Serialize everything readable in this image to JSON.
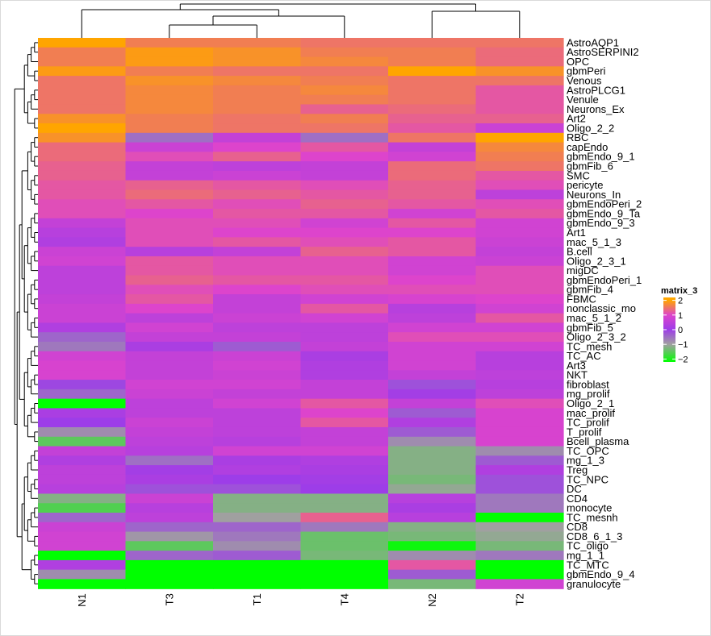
{
  "chart_data": {
    "type": "heatmap",
    "title": "",
    "columns": [
      "N1",
      "T3",
      "T1",
      "T4",
      "N2",
      "T2"
    ],
    "rows": [
      "AstroAQP1",
      "AstroSERPINI2",
      "OPC",
      "gbmPeri",
      "Venous",
      "AstroPLCG1",
      "Venule",
      "Neurons_Ex",
      "Art2",
      "Oligo_2_2",
      "RBC",
      "capEndo",
      "gbmEndo_9_1",
      "gbmFib_6",
      "SMC",
      "pericyte",
      "Neurons_In",
      "gbmEndoPeri_2",
      "gbmEndo_9_Ta",
      "gbmEndo_9_3",
      "Art1",
      "mac_5_1_3",
      "B.cell",
      "Oligo_2_3_1",
      "migDC",
      "gbmEndoPeri_1",
      "gbmFib_4",
      "FBMC",
      "nonclassic_mo",
      "mac_5_1_2",
      "gbmFib_5",
      "Oligo_2_3_2",
      "TC_mesh",
      "TC_AC",
      "Art3",
      "NKT",
      "fibroblast",
      "mg_prolif",
      "Oligo_2_1",
      "mac_prolif",
      "TC_prolif",
      "T_prolif",
      "Bcell_plasma",
      "TC_OPC",
      "mg_1_3",
      "Treg",
      "TC_NPC",
      "DC",
      "CD4",
      "monocyte",
      "TC_mesnh",
      "CD8",
      "CD8_6_1_3",
      "TC_oligo",
      "mg_1_1",
      "TC_MTC",
      "gbmEndo_9_4",
      "granulocyte"
    ],
    "values": [
      [
        2.0,
        1.6,
        1.6,
        1.5,
        1.5,
        1.5
      ],
      [
        1.6,
        1.9,
        1.8,
        1.6,
        1.6,
        1.4
      ],
      [
        1.6,
        1.9,
        1.8,
        1.7,
        1.6,
        1.4
      ],
      [
        1.9,
        1.6,
        1.5,
        1.5,
        2.0,
        1.8
      ],
      [
        1.5,
        1.8,
        1.7,
        1.6,
        1.5,
        1.5
      ],
      [
        1.5,
        1.7,
        1.6,
        1.7,
        1.5,
        1.2
      ],
      [
        1.5,
        1.7,
        1.6,
        1.6,
        1.5,
        1.2
      ],
      [
        1.5,
        1.7,
        1.6,
        1.3,
        1.4,
        1.2
      ],
      [
        1.8,
        1.6,
        1.5,
        1.6,
        1.3,
        1.3
      ],
      [
        2.0,
        1.6,
        1.5,
        1.5,
        1.2,
        0.7
      ],
      [
        1.8,
        -0.5,
        0.6,
        -0.5,
        1.5,
        2.0
      ],
      [
        1.4,
        0.7,
        1.0,
        1.2,
        0.6,
        1.7
      ],
      [
        1.4,
        1.1,
        1.3,
        1.0,
        0.8,
        1.6
      ],
      [
        1.3,
        0.6,
        0.5,
        0.6,
        1.4,
        1.5
      ],
      [
        1.3,
        0.6,
        0.7,
        0.6,
        1.4,
        1.2
      ],
      [
        1.2,
        1.3,
        1.2,
        1.1,
        1.3,
        1.1
      ],
      [
        1.2,
        1.4,
        1.3,
        1.2,
        1.3,
        0.5
      ],
      [
        1.1,
        1.2,
        1.1,
        1.3,
        1.2,
        1.1
      ],
      [
        1.1,
        1.0,
        1.2,
        1.2,
        0.8,
        1.2
      ],
      [
        0.6,
        1.1,
        1.1,
        0.8,
        1.2,
        0.8
      ],
      [
        0.4,
        1.1,
        1.0,
        1.0,
        1.0,
        0.8
      ],
      [
        0.3,
        1.1,
        1.2,
        1.1,
        1.2,
        0.7
      ],
      [
        0.7,
        0.4,
        0.6,
        1.3,
        1.2,
        0.6
      ],
      [
        0.8,
        1.2,
        1.1,
        1.1,
        0.8,
        0.7
      ],
      [
        0.5,
        1.2,
        1.1,
        1.1,
        0.8,
        1.1
      ],
      [
        0.5,
        1.3,
        1.2,
        1.2,
        1.0,
        1.1
      ],
      [
        0.5,
        1.1,
        1.0,
        1.1,
        1.1,
        1.1
      ],
      [
        0.6,
        1.2,
        0.6,
        0.8,
        0.9,
        1.0
      ],
      [
        0.7,
        1.0,
        0.6,
        1.2,
        0.4,
        0.8
      ],
      [
        0.7,
        0.5,
        0.7,
        0.8,
        0.5,
        1.2
      ],
      [
        0.3,
        0.8,
        0.5,
        0.5,
        0.8,
        0.8
      ],
      [
        -0.4,
        0.6,
        0.6,
        0.5,
        1.1,
        1.1
      ],
      [
        -0.6,
        0.2,
        -0.3,
        0.6,
        0.8,
        0.8
      ],
      [
        0.8,
        0.6,
        0.7,
        0.2,
        0.8,
        0.4
      ],
      [
        0.9,
        0.6,
        0.8,
        0.3,
        0.8,
        0.4
      ],
      [
        0.9,
        0.6,
        0.7,
        0.3,
        0.6,
        0.5
      ],
      [
        -0.1,
        0.8,
        0.8,
        0.6,
        -0.2,
        0.4
      ],
      [
        -0.4,
        0.7,
        0.6,
        0.6,
        0.1,
        0.5
      ],
      [
        -2.2,
        0.5,
        0.8,
        1.2,
        0.6,
        1.1
      ],
      [
        0.2,
        0.5,
        0.5,
        1.0,
        -0.3,
        0.9
      ],
      [
        0.0,
        0.7,
        0.5,
        1.2,
        0.3,
        0.9
      ],
      [
        -0.8,
        0.6,
        0.5,
        0.6,
        -0.3,
        0.9
      ],
      [
        -1.5,
        0.5,
        0.4,
        0.6,
        -0.8,
        0.9
      ],
      [
        0.6,
        0.4,
        0.8,
        0.8,
        -1.2,
        -0.8
      ],
      [
        0.3,
        -0.5,
        0.2,
        0.3,
        -1.2,
        -0.3
      ],
      [
        0.5,
        0.1,
        0.3,
        0.2,
        -1.2,
        0.3
      ],
      [
        0.5,
        0.2,
        0.0,
        0.1,
        -1.3,
        -0.2
      ],
      [
        0.4,
        -0.2,
        -0.2,
        0.0,
        -1.1,
        -0.2
      ],
      [
        -1.2,
        0.7,
        -1.2,
        -1.2,
        0.4,
        -0.6
      ],
      [
        -1.6,
        0.4,
        -1.2,
        -1.2,
        0.2,
        -0.6
      ],
      [
        -0.4,
        0.5,
        -1.0,
        1.3,
        0.4,
        -2.2
      ],
      [
        0.7,
        -0.4,
        -0.4,
        -0.6,
        -1.2,
        -1.0
      ],
      [
        0.8,
        -0.9,
        -0.6,
        -1.4,
        -1.3,
        -1.1
      ],
      [
        0.8,
        -1.5,
        -0.8,
        -1.4,
        -2.1,
        -1.3
      ],
      [
        -2.2,
        -0.4,
        -0.3,
        -1.3,
        -0.8,
        -0.6
      ],
      [
        0.3,
        -2.2,
        -2.2,
        -2.2,
        1.2,
        -2.2
      ],
      [
        -0.8,
        -2.2,
        -2.2,
        -2.2,
        -0.3,
        -2.2
      ],
      [
        -2.2,
        -2.2,
        -2.2,
        -2.2,
        -1.3,
        0.8
      ]
    ],
    "color_scale": {
      "title": "matrix_3",
      "ticks": [
        2,
        1,
        0,
        -1,
        -2
      ],
      "stops": [
        {
          "value": 2,
          "color": "#ffa500"
        },
        {
          "value": 1,
          "color": "#dd44cc"
        },
        {
          "value": 0,
          "color": "#9d3de8"
        },
        {
          "value": -1,
          "color": "#a0a0a0"
        },
        {
          "value": -2.2,
          "color": "#00ff00"
        }
      ]
    },
    "row_dendrogram": true,
    "column_dendrogram": true
  }
}
